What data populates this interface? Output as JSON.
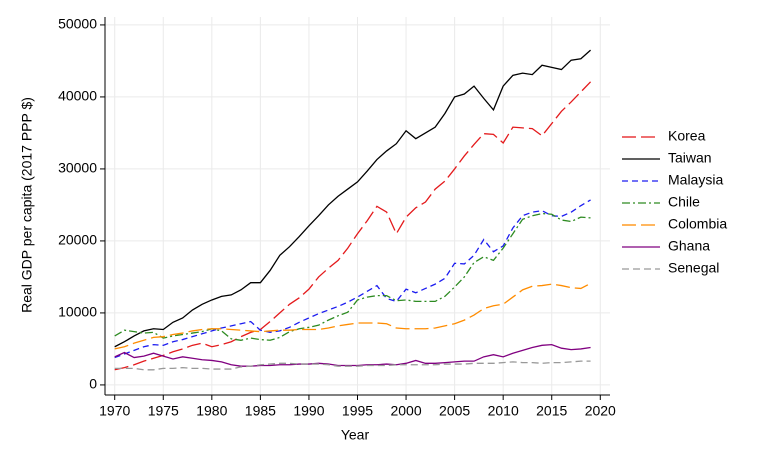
{
  "chart_data": {
    "type": "line",
    "x_label": "Year",
    "y_label": "Real GDP per capita (2017 PPP $)",
    "x": [
      1970,
      1971,
      1972,
      1973,
      1974,
      1975,
      1976,
      1977,
      1978,
      1979,
      1980,
      1981,
      1982,
      1983,
      1984,
      1985,
      1986,
      1987,
      1988,
      1989,
      1990,
      1991,
      1992,
      1993,
      1994,
      1995,
      1996,
      1997,
      1998,
      1999,
      2000,
      2001,
      2002,
      2003,
      2004,
      2005,
      2006,
      2007,
      2008,
      2009,
      2010,
      2011,
      2012,
      2013,
      2014,
      2015,
      2016,
      2017,
      2018,
      2019
    ],
    "xlim": [
      1969,
      2021
    ],
    "xticks": [
      1970,
      1975,
      1980,
      1985,
      1990,
      1995,
      2000,
      2005,
      2010,
      2015,
      2020
    ],
    "ylim": [
      -1400,
      51100
    ],
    "yticks": [
      0,
      10000,
      20000,
      30000,
      40000,
      50000
    ],
    "grid": true,
    "legend": "right",
    "series": [
      {
        "name": "Korea",
        "color": "#e41a1c",
        "values": [
          2100,
          2400,
          2800,
          3300,
          3700,
          4100,
          4600,
          5000,
          5500,
          5800,
          5300,
          5600,
          6000,
          6700,
          7300,
          7700,
          8800,
          10000,
          11200,
          12100,
          13300,
          15000,
          16200,
          17300,
          19000,
          21000,
          22800,
          24800,
          24000,
          21000,
          23300,
          24600,
          25400,
          27200,
          28300,
          30000,
          31800,
          33400,
          34900,
          34800,
          33600,
          35800,
          35700,
          35600,
          34600,
          36300,
          38000,
          39300,
          40700,
          42100
        ]
      },
      {
        "name": "Taiwan",
        "color": "#000000",
        "values": [
          5300,
          6000,
          6800,
          7500,
          7800,
          7700,
          8700,
          9300,
          10400,
          11200,
          11800,
          12300,
          12500,
          13200,
          14200,
          14200,
          15900,
          18000,
          19200,
          20600,
          22100,
          23500,
          25000,
          26200,
          27200,
          28200,
          29700,
          31300,
          32500,
          33500,
          35300,
          34200,
          35000,
          35800,
          37700,
          40000,
          40400,
          41500,
          39800,
          38200,
          41500,
          43000,
          43300,
          43100,
          44400,
          44100,
          43800,
          45100,
          45300,
          46500
        ]
      },
      {
        "name": "Malaysia",
        "color": "#1c1cf0",
        "values": [
          3800,
          4300,
          4800,
          5300,
          5600,
          5500,
          6000,
          6300,
          6700,
          7100,
          7500,
          7900,
          8200,
          8500,
          8800,
          7600,
          7300,
          7500,
          8000,
          8700,
          9300,
          9900,
          10400,
          10900,
          11500,
          12200,
          13000,
          13800,
          12000,
          11600,
          13300,
          12800,
          13400,
          14000,
          14800,
          16900,
          16800,
          18000,
          20200,
          18500,
          19300,
          21800,
          23500,
          24000,
          24200,
          23500,
          23400,
          24000,
          24900,
          25700
        ]
      },
      {
        "name": "Chile",
        "color": "#2e8b22",
        "values": [
          6800,
          7600,
          7400,
          7200,
          7300,
          6500,
          6800,
          7000,
          7200,
          7400,
          7800,
          7500,
          6400,
          6200,
          6500,
          6300,
          6200,
          6600,
          7400,
          7800,
          8000,
          8300,
          9000,
          9600,
          10100,
          11800,
          12200,
          12400,
          12400,
          11700,
          11800,
          11600,
          11600,
          11600,
          12300,
          13600,
          15000,
          17000,
          17800,
          17300,
          19000,
          21000,
          23000,
          23500,
          23800,
          23700,
          22900,
          22700,
          23300,
          23200
        ]
      },
      {
        "name": "Colombia",
        "color": "#ff8c00",
        "values": [
          5000,
          5300,
          5800,
          6200,
          6600,
          6700,
          7000,
          7200,
          7500,
          7700,
          7800,
          7800,
          7700,
          7600,
          7500,
          7400,
          7500,
          7600,
          7600,
          7700,
          7700,
          7700,
          7900,
          8200,
          8400,
          8600,
          8600,
          8600,
          8500,
          7900,
          7800,
          7800,
          7800,
          7900,
          8200,
          8500,
          9000,
          9700,
          10600,
          11000,
          11200,
          12200,
          13200,
          13700,
          13800,
          14000,
          13800,
          13500,
          13400,
          14100
        ]
      },
      {
        "name": "Ghana",
        "color": "#800080",
        "values": [
          3900,
          4500,
          3800,
          4000,
          4400,
          4000,
          3600,
          3900,
          3700,
          3500,
          3400,
          3200,
          2800,
          2600,
          2600,
          2700,
          2700,
          2800,
          2800,
          2900,
          2900,
          3000,
          2900,
          2700,
          2700,
          2700,
          2800,
          2800,
          2900,
          2800,
          3000,
          3400,
          3000,
          3000,
          3100,
          3200,
          3300,
          3300,
          3900,
          4200,
          3900,
          4400,
          4800,
          5200,
          5500,
          5600,
          5100,
          4900,
          5000,
          5200
        ]
      },
      {
        "name": "Senegal",
        "color": "#999999",
        "values": [
          2300,
          2300,
          2300,
          2100,
          2100,
          2300,
          2300,
          2400,
          2300,
          2300,
          2200,
          2200,
          2200,
          2500,
          2600,
          2800,
          2900,
          3000,
          3000,
          2900,
          2900,
          2900,
          2800,
          2600,
          2600,
          2600,
          2700,
          2700,
          2700,
          2800,
          2800,
          2800,
          2800,
          2800,
          2900,
          2900,
          2900,
          3000,
          3000,
          3000,
          3100,
          3200,
          3100,
          3100,
          3000,
          3100,
          3100,
          3200,
          3300,
          3300
        ]
      }
    ]
  }
}
